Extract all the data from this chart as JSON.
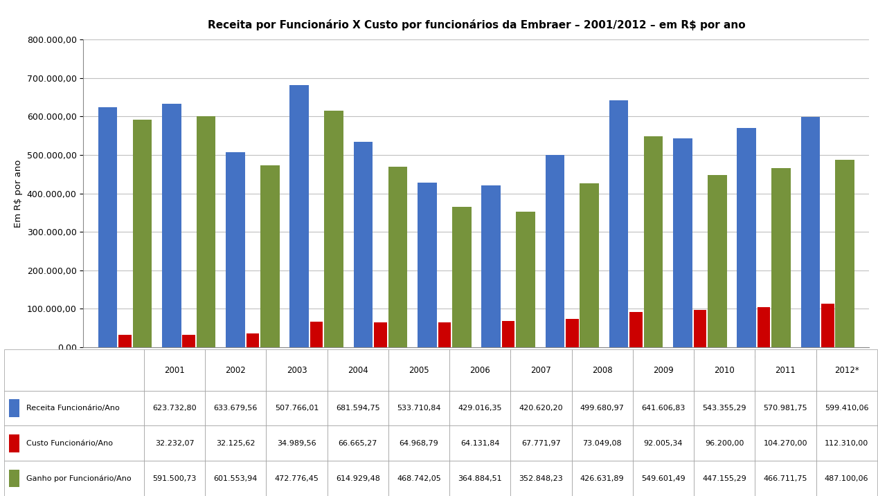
{
  "title": "Receita por Funcionário X Custo por funcionários da Embraer – 2001/2012 – em R$ por ano",
  "ylabel": "Em R$ por ano",
  "years": [
    "2001",
    "2002",
    "2003",
    "2004",
    "2005",
    "2006",
    "2007",
    "2008",
    "2009",
    "2010",
    "2011",
    "2012*"
  ],
  "receita": [
    623732.8,
    633679.56,
    507766.01,
    681594.75,
    533710.84,
    429016.35,
    420620.2,
    499680.97,
    641606.83,
    543355.29,
    570981.75,
    599410.06
  ],
  "custo": [
    32232.07,
    32125.62,
    34989.56,
    66665.27,
    64968.79,
    64131.84,
    67771.97,
    73049.08,
    92005.34,
    96200.0,
    104270.0,
    112310.0
  ],
  "ganho": [
    591500.73,
    601553.94,
    472776.45,
    614929.48,
    468742.05,
    364884.51,
    352848.23,
    426631.89,
    549601.49,
    447155.29,
    466711.75,
    487100.06
  ],
  "color_receita": "#4472C4",
  "color_custo": "#CC0000",
  "color_ganho": "#76933C",
  "ylim_max": 800000,
  "ytick_step": 100000,
  "legend_labels": [
    "Receita Funcionário/Ano",
    "Custo Funcionário/Ano",
    "Ganho por Funcionário/Ano"
  ],
  "table_values": [
    [
      "623.732,80",
      "633.679,56",
      "507.766,01",
      "681.594,75",
      "533.710,84",
      "429.016,35",
      "420.620,20",
      "499.680,97",
      "641.606,83",
      "543.355,29",
      "570.981,75",
      "599.410,06"
    ],
    [
      "32.232,07",
      "32.125,62",
      "34.989,56",
      "66.665,27",
      "64.968,79",
      "64.131,84",
      "67.771,97",
      "73.049,08",
      "92.005,34",
      "96.200,00",
      "104.270,00",
      "112.310,00"
    ],
    [
      "591.500,73",
      "601.553,94",
      "472.776,45",
      "614.929,48",
      "468.742,05",
      "364.884,51",
      "352.848,23",
      "426.631,89",
      "549.601,49",
      "447.155,29",
      "466.711,75",
      "487.100,06"
    ]
  ],
  "bg_color": "#FFFFFF",
  "grid_color": "#C0C0C0"
}
